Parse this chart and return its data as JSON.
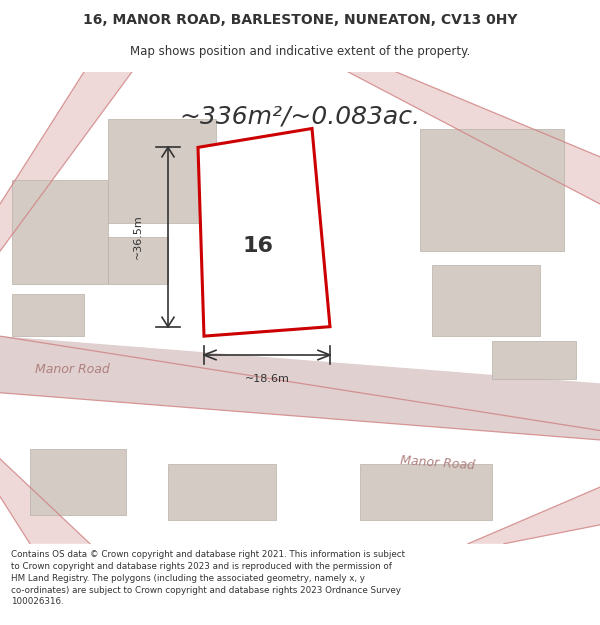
{
  "title_line1": "16, MANOR ROAD, BARLESTONE, NUNEATON, CV13 0HY",
  "title_line2": "Map shows position and indicative extent of the property.",
  "area_text": "~336m²/~0.083ac.",
  "house_number": "16",
  "dim_width": "~18.6m",
  "dim_height": "~36.5m",
  "road_label1": "Manor Road",
  "road_label2": "Manor Road",
  "footer_line1": "Contains OS data © Crown copyright and database right 2021. This information is subject",
  "footer_line2": "to Crown copyright and database rights 2023 and is reproduced with the permission of",
  "footer_line3": "HM Land Registry. The polygons (including the associated geometry, namely x, y",
  "footer_line4": "co-ordinates) are subject to Crown copyright and database rights 2023 Ordnance Survey",
  "footer_line5": "100026316.",
  "map_bg_color": "#f2ede8",
  "property_fill": "#ffffff",
  "property_edge": "#cc0000",
  "road_color": "#e8c8c8",
  "building_fill": "#d4ccc4",
  "building_edge": "#b8b0a8",
  "dim_color": "#333333",
  "text_color": "#333333",
  "white": "#ffffff"
}
